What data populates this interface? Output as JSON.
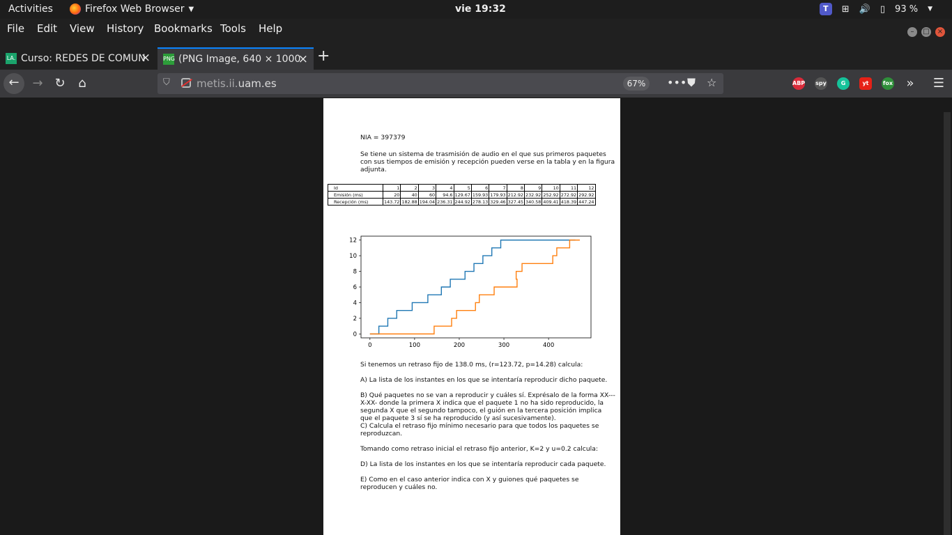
{
  "topbar": {
    "activities": "Activities",
    "app_name": "Firefox Web Browser",
    "clock": "vie 19:32",
    "teams_letter": "T",
    "battery": "93 %"
  },
  "menubar": {
    "items": [
      "File",
      "Edit",
      "View",
      "History",
      "Bookmarks",
      "Tools",
      "Help"
    ]
  },
  "tabs": [
    {
      "favicon": "LA.",
      "title": "Curso: REDES DE COMUN"
    },
    {
      "favicon": "PNG",
      "title": "(PNG Image, 640 × 1000"
    }
  ],
  "navbar": {
    "url_dim": "metis.ii.",
    "url_main": "uam.es",
    "zoom": "67%",
    "extensions": [
      "ABP",
      "spy",
      "G",
      "yt",
      "fox"
    ]
  },
  "document": {
    "nia": "NIA = 397379",
    "intro": "Se tiene un sistema de trasmisión de audio en el que sus primeros paquetes con sus tiempos de emisión y recepción pueden verse en la tabla y en la figura adjunta.",
    "table": {
      "rows": [
        {
          "label": "Id",
          "values": [
            "1",
            "2",
            "3",
            "4",
            "5",
            "6",
            "7",
            "8",
            "9",
            "10",
            "11",
            "12"
          ]
        },
        {
          "label": "Emisión (ms)",
          "values": [
            "20",
            "40",
            "60",
            "94.6",
            "129.67",
            "159.93",
            "179.93",
            "212.92",
            "232.92",
            "252.92",
            "272.92",
            "292.92"
          ]
        },
        {
          "label": "Recepción (ms)",
          "values": [
            "143.72",
            "182.88",
            "194.04",
            "236.31",
            "244.92",
            "278.13",
            "329.46",
            "327.45",
            "340.58",
            "409.41",
            "418.39",
            "447.24"
          ]
        }
      ]
    },
    "question_intro": "Si tenemos un retraso fijo de 138.0 ms, (r=123.72, p=14.28) calcula:",
    "qA": "A) La lista de los instantes en los que se intentaría reproducir dicho paquete.",
    "qB": "B) Qué paquetes no se van a reproducir y cuáles sí. Exprésalo de la forma XX---X-XX- donde la primera X indica que el paquete 1 no ha sido reproducido, la segunda X que el segundo tampoco, el guión en la tercera posición implica que el paquete 3 sí se ha reproducido (y así sucesivamente).",
    "qC": "C) Calcula el retraso fijo mínimo necesario para que todos los paquetes se reproduzcan.",
    "second_intro": "Tomando como retraso inicial el retraso fijo anterior, K=2 y u=0.2 calcula:",
    "qD": "D) La lista de los instantes en los que se intentaría reproducir cada paquete.",
    "qE": "E) Como en el caso anterior indica con X y guiones qué paquetes se reproducen y cuáles no."
  },
  "chart_data": {
    "type": "line",
    "step": true,
    "xlim": [
      -20,
      495
    ],
    "ylim": [
      -0.5,
      12.5
    ],
    "xticks": [
      0,
      100,
      200,
      300,
      400
    ],
    "yticks": [
      0,
      2,
      4,
      6,
      8,
      10,
      12
    ],
    "series": [
      {
        "color": "#1f77b4",
        "x": [
          0,
          20,
          40,
          60,
          94.6,
          129.67,
          159.93,
          179.93,
          212.92,
          232.92,
          252.92,
          272.92,
          292.92,
          460
        ],
        "y": [
          0,
          1,
          2,
          3,
          4,
          5,
          6,
          7,
          8,
          9,
          10,
          11,
          12,
          12
        ]
      },
      {
        "color": "#ff7f0e",
        "x": [
          0,
          143.72,
          182.88,
          194.04,
          236.31,
          244.92,
          278.13,
          329.46,
          327.45,
          340.58,
          409.41,
          418.39,
          447.24,
          470
        ],
        "y": [
          0,
          1,
          2,
          3,
          4,
          5,
          6,
          7,
          8,
          9,
          10,
          11,
          12,
          12
        ]
      }
    ]
  }
}
